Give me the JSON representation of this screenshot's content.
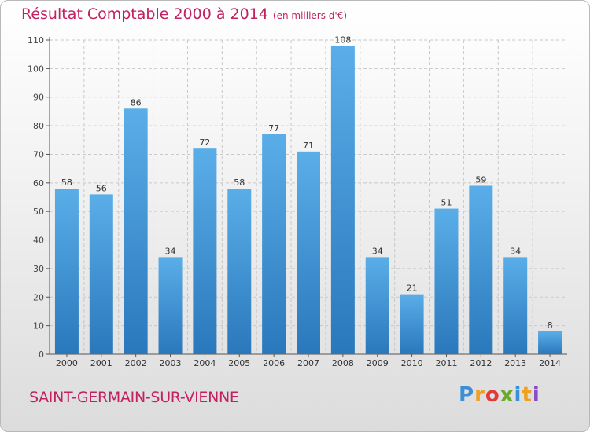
{
  "header": {
    "title": "Résultat Comptable 2000 à 2014",
    "subtitle": "(en milliers d'€)"
  },
  "footer": {
    "commune": "SAINT-GERMAIN-SUR-VIENNE",
    "logo": {
      "letters": [
        "P",
        "r",
        "o",
        "x",
        "i",
        "t",
        "i"
      ],
      "colors": [
        "#3a8fd6",
        "#f0a020",
        "#e23a3a",
        "#6aaa2a",
        "#3a8fd6",
        "#f0a020",
        "#8a4bc8"
      ]
    }
  },
  "chart_data": {
    "type": "bar",
    "title": "Résultat Comptable 2000 à 2014",
    "subtitle": "(en milliers d'€)",
    "xlabel": "",
    "ylabel": "",
    "categories": [
      "2000",
      "2001",
      "2002",
      "2003",
      "2004",
      "2005",
      "2006",
      "2007",
      "2008",
      "2009",
      "2010",
      "2011",
      "2012",
      "2013",
      "2014"
    ],
    "values": [
      58,
      56,
      86,
      34,
      72,
      58,
      77,
      71,
      108,
      34,
      21,
      51,
      59,
      34,
      8
    ],
    "ylim": [
      0,
      110
    ],
    "yticks": [
      0,
      10,
      20,
      30,
      40,
      50,
      60,
      70,
      80,
      90,
      100,
      110
    ],
    "grid": true,
    "bar_color_top": "#5aaee8",
    "bar_color_bottom": "#2a78bc"
  }
}
